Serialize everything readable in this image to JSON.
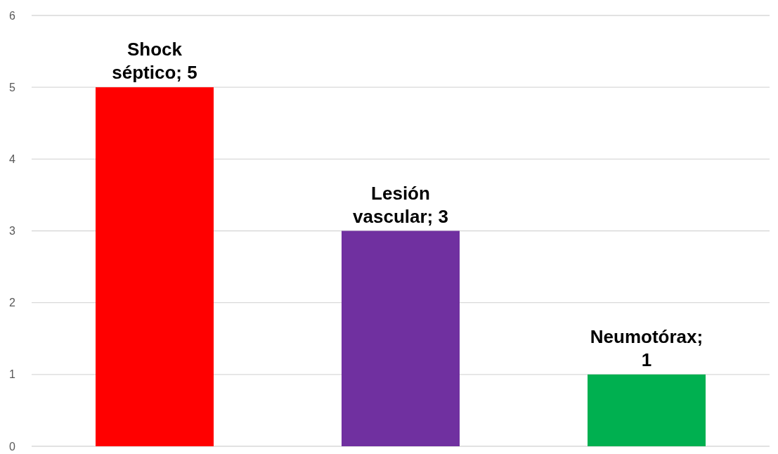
{
  "chart_data": {
    "type": "bar",
    "categories": [
      null,
      null,
      null
    ],
    "values": [
      5,
      3,
      1
    ],
    "colors": [
      "#ff0000",
      "#7030a0",
      "#00b050"
    ],
    "value_labels": [
      "Shock séptico; 5",
      "Lesión vascular; 3",
      "Neumotórax; 1"
    ],
    "ylim": [
      0,
      6
    ],
    "yticks": [
      0,
      1,
      2,
      3,
      4,
      5,
      6
    ],
    "grid": "y",
    "tick_labels": "y"
  }
}
